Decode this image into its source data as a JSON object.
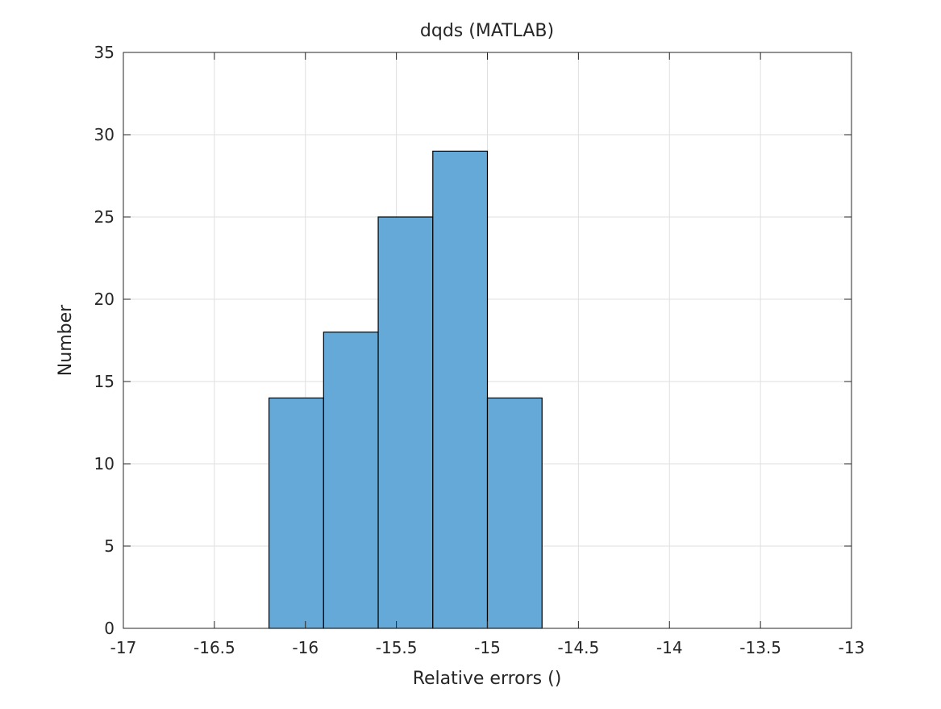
{
  "chart_data": {
    "type": "bar",
    "subtype": "histogram",
    "title": "dqds (MATLAB)",
    "xlabel": "Relative errors ()",
    "ylabel": "Number",
    "xlim": [
      -17,
      -13
    ],
    "ylim": [
      0,
      35
    ],
    "xticks": [
      -17,
      -16.5,
      -16,
      -15.5,
      -15,
      -14.5,
      -14,
      -13.5,
      -13
    ],
    "xtick_labels": [
      "-17",
      "-16.5",
      "-16",
      "-15.5",
      "-15",
      "-14.5",
      "-14",
      "-13.5",
      "-13"
    ],
    "yticks": [
      0,
      5,
      10,
      15,
      20,
      25,
      30,
      35
    ],
    "ytick_labels": [
      "0",
      "5",
      "10",
      "15",
      "20",
      "25",
      "30",
      "35"
    ],
    "bin_edges": [
      -16.2,
      -15.9,
      -15.6,
      -15.3,
      -15.0,
      -14.7
    ],
    "values": [
      14,
      18,
      25,
      29,
      14
    ],
    "grid": true,
    "colors": {
      "bar_fill": "#64a9d7",
      "bar_edge": "#000000",
      "grid": "#dfdfdf",
      "axes": "#262626"
    }
  }
}
